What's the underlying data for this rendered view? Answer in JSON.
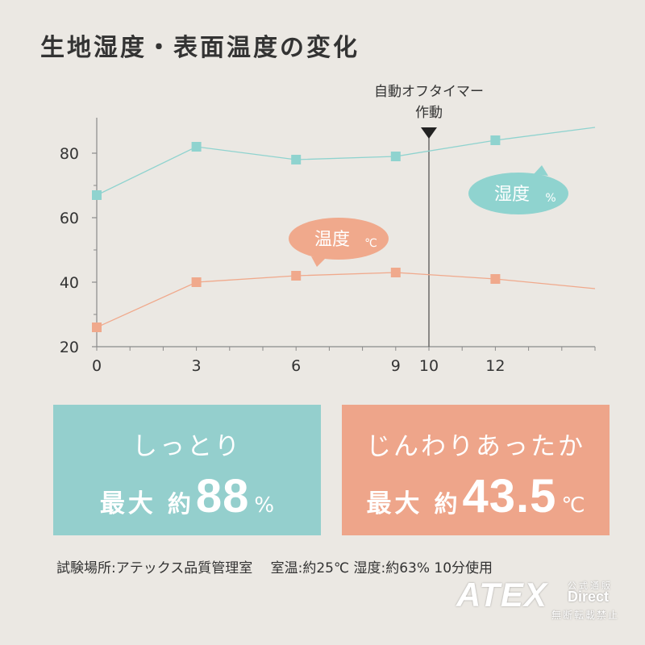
{
  "title": "生地湿度・表面温度の変化",
  "colors": {
    "humidity": "#8fd3cf",
    "temperature": "#f0a98c",
    "axis": "#8a8a8a",
    "marker_line": "#555555",
    "background": "#ebe8e3"
  },
  "chart_data": {
    "type": "line",
    "title": "",
    "xlabel": "",
    "ylabel": "",
    "xlim": [
      0,
      15
    ],
    "ylim": [
      20,
      90
    ],
    "xticks": [
      0,
      3,
      6,
      9,
      10,
      12
    ],
    "yticks": [
      20,
      40,
      60,
      80
    ],
    "grid": false,
    "series": [
      {
        "name": "湿度 %",
        "color": "#8fd3cf",
        "x": [
          0,
          3,
          6,
          9,
          12
        ],
        "y": [
          67,
          82,
          78,
          79,
          84
        ],
        "line_end": [
          15,
          88
        ]
      },
      {
        "name": "温度 ℃",
        "color": "#f0a98c",
        "x": [
          0,
          3,
          6,
          9,
          12
        ],
        "y": [
          26,
          40,
          42,
          43,
          41
        ],
        "line_end": [
          15,
          38
        ]
      }
    ],
    "annotations": [
      {
        "x": 10,
        "line1": "自動オフタイマー",
        "line2": "作動"
      }
    ],
    "bubbles": [
      {
        "series": 0,
        "text": "湿度",
        "unit": "%"
      },
      {
        "series": 1,
        "text": "温度",
        "unit": "℃"
      }
    ]
  },
  "cards": {
    "humidity": {
      "tagline": "しっとり",
      "max_label": "最大",
      "approx": "約",
      "value": "88",
      "unit": "%"
    },
    "temperature": {
      "tagline": "じんわりあったか",
      "max_label": "最大",
      "approx": "約",
      "value": "43.5",
      "unit": "℃"
    }
  },
  "footnote": "試験場所:アテックス品質管理室　 室温:約25℃ 湿度:約63% 10分使用",
  "logo": {
    "brand": "ATEX",
    "tag": "公式通販",
    "channel": "Direct",
    "notice": "無断転載禁止"
  }
}
